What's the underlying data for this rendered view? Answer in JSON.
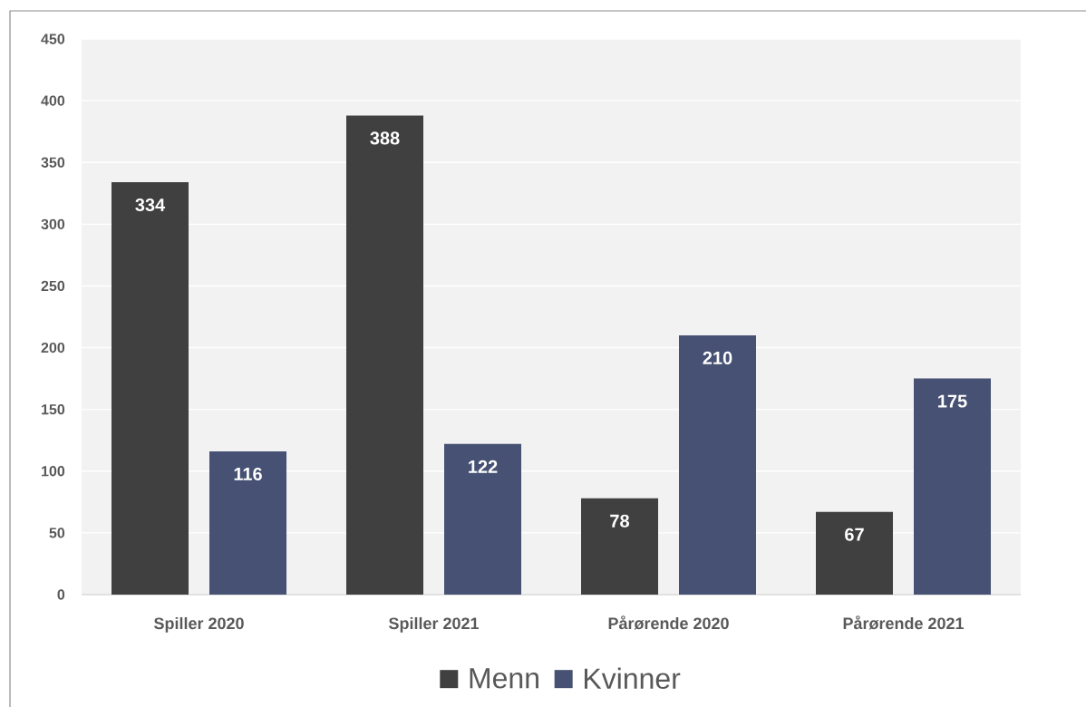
{
  "chart_data": {
    "type": "bar",
    "categories": [
      "Spiller 2020",
      "Spiller 2021",
      "Pårørende 2020",
      "Pårørende 2021"
    ],
    "series": [
      {
        "name": "Menn",
        "color": "#404040",
        "values": [
          334,
          388,
          78,
          67
        ]
      },
      {
        "name": "Kvinner",
        "color": "#465173",
        "values": [
          116,
          122,
          210,
          175
        ]
      }
    ],
    "ylim": [
      0,
      450
    ],
    "yticks": [
      0,
      50,
      100,
      150,
      200,
      250,
      300,
      350,
      400,
      450
    ],
    "grid": "y",
    "legend": "bottom",
    "data_labels": true
  }
}
